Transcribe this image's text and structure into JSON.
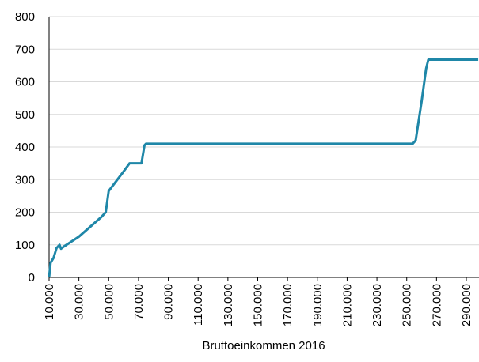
{
  "chart_data": {
    "type": "line",
    "x_label": "Bruttoeinkommen 2016",
    "x": [
      10000,
      11000,
      13000,
      15000,
      17000,
      18000,
      20000,
      25000,
      30000,
      35000,
      40000,
      45000,
      48000,
      50000,
      55000,
      60000,
      64000,
      72000,
      74000,
      75000,
      100000,
      150000,
      200000,
      254000,
      256000,
      260000,
      263000,
      264500,
      280000,
      298000
    ],
    "series": [
      {
        "name": "Line",
        "color": "#1f87a8",
        "values": [
          0,
          45,
          60,
          90,
          100,
          88,
          95,
          110,
          125,
          145,
          165,
          185,
          200,
          265,
          295,
          325,
          350,
          350,
          405,
          410,
          410,
          410,
          410,
          410,
          420,
          540,
          640,
          668,
          668,
          668
        ]
      }
    ],
    "xlim": [
      10000,
      298500
    ],
    "xticks": [
      {
        "value": 10000,
        "label": "10.000"
      },
      {
        "value": 30000,
        "label": "30.000"
      },
      {
        "value": 50000,
        "label": "50.000"
      },
      {
        "value": 70000,
        "label": "70.000"
      },
      {
        "value": 90000,
        "label": "90.000"
      },
      {
        "value": 110000,
        "label": "110.000"
      },
      {
        "value": 130000,
        "label": "130.000"
      },
      {
        "value": 150000,
        "label": "150.000"
      },
      {
        "value": 170000,
        "label": "170.000"
      },
      {
        "value": 190000,
        "label": "190.000"
      },
      {
        "value": 210000,
        "label": "210.000"
      },
      {
        "value": 230000,
        "label": "230.000"
      },
      {
        "value": 250000,
        "label": "250.000"
      },
      {
        "value": 270000,
        "label": "270.000"
      },
      {
        "value": 290000,
        "label": "290.000"
      }
    ],
    "ylim": [
      0,
      800
    ],
    "yticks": [
      0,
      100,
      200,
      300,
      400,
      500,
      600,
      700,
      800
    ],
    "grid": true
  }
}
